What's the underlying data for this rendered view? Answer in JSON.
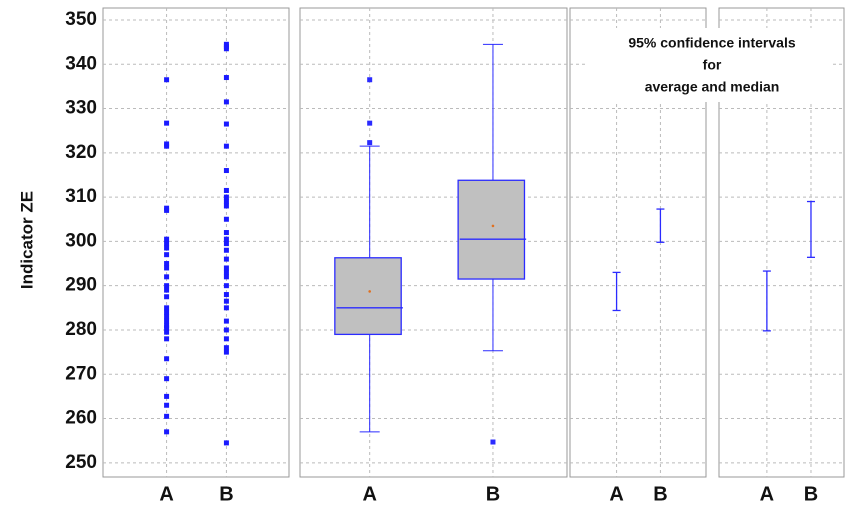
{
  "chart_data": [
    {
      "type": "strip",
      "y_label": "Indicator ZE",
      "categories": [
        "A",
        "B"
      ],
      "values": [
        [
          336.5,
          326.7,
          322,
          321.5,
          307.5,
          307,
          300.5,
          299.5,
          298.5,
          297,
          295,
          294,
          292,
          290,
          289,
          287.5,
          285,
          284,
          283,
          282,
          281,
          280.5,
          279.5,
          278,
          273.5,
          269,
          265,
          263,
          260.5,
          257
        ],
        [
          344.5,
          344,
          343.5,
          337,
          331.5,
          326.5,
          321.5,
          316,
          311.5,
          310,
          309,
          308,
          305,
          302,
          300.5,
          299.5,
          298,
          296,
          294,
          293,
          292,
          290,
          288,
          286.5,
          285,
          282,
          280,
          278,
          276,
          275,
          254.5
        ]
      ],
      "color": "#1a1aff",
      "ylim": [
        246.8,
        352.7
      ],
      "yticks": [
        250,
        260,
        270,
        280,
        290,
        300,
        310,
        320,
        330,
        340,
        350
      ],
      "grid": true
    },
    {
      "type": "box",
      "categories": [
        "A",
        "B"
      ],
      "boxes": [
        {
          "min": 257,
          "q1": 279,
          "median": 285,
          "q3": 296.3,
          "max": 321.5,
          "mean": 288.7,
          "outliers": [
            336.5,
            326.7,
            322.3
          ]
        },
        {
          "min": 275.3,
          "q1": 291.5,
          "median": 300.5,
          "q3": 313.8,
          "max": 344.5,
          "mean": 303.5,
          "outliers": [
            254.7
          ]
        }
      ],
      "color": "#2b2bff",
      "box_fill": "#c0c0c0",
      "mean_color": "#e07020",
      "ylim": [
        246.8,
        352.7
      ],
      "yticks": [
        250,
        260,
        270,
        280,
        290,
        300,
        310,
        320,
        330,
        340,
        350
      ],
      "grid": true
    },
    {
      "type": "interval",
      "categories": [
        "A",
        "B"
      ],
      "low": [
        284.4,
        299.8
      ],
      "high": [
        293,
        307.3
      ],
      "annotation": [
        "95%  confidence intervals",
        "for",
        "average  and   median"
      ],
      "color": "#2b2bff",
      "ylim": [
        246.8,
        352.7
      ],
      "yticks": [
        250,
        260,
        270,
        280,
        290,
        300,
        310,
        320,
        330,
        340,
        350
      ],
      "grid": true
    },
    {
      "type": "interval",
      "categories": [
        "A",
        "B"
      ],
      "low": [
        279.8,
        296.4
      ],
      "high": [
        293.3,
        309
      ],
      "color": "#2b2bff",
      "ylim": [
        246.8,
        352.7
      ],
      "yticks": [
        250,
        260,
        270,
        280,
        290,
        300,
        310,
        320,
        330,
        340,
        350
      ],
      "grid": true
    }
  ]
}
